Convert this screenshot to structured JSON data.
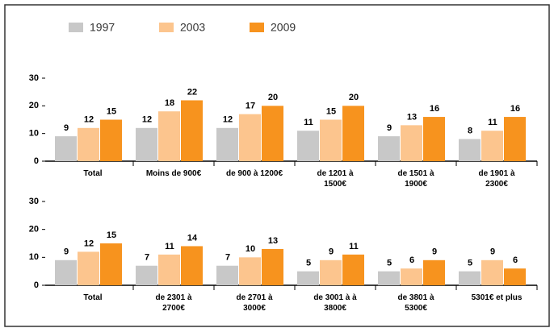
{
  "chart_data": [
    {
      "type": "bar",
      "categories": [
        "Total",
        "Moins de 900€",
        "de 900 à 1200€",
        "de 1201 à\n1500€",
        "de 1501 à\n1900€",
        "de 1901 à\n2300€"
      ],
      "series": [
        {
          "name": "1997",
          "color": "#c8c8c8",
          "values": [
            9,
            12,
            12,
            11,
            9,
            8
          ]
        },
        {
          "name": "2003",
          "color": "#fcc58e",
          "values": [
            12,
            18,
            17,
            15,
            13,
            11
          ]
        },
        {
          "name": "2009",
          "color": "#f7931e",
          "values": [
            15,
            22,
            20,
            20,
            16,
            16
          ]
        }
      ],
      "ylim": [
        0,
        30
      ],
      "yticks": [
        0,
        10,
        20,
        30
      ],
      "legend": "top"
    },
    {
      "type": "bar",
      "categories": [
        "Total",
        "de 2301 à\n2700€",
        "de 2701 à\n3000€",
        "de 3001 à à\n3800€",
        "de 3801 à\n5300€",
        "5301€ et plus"
      ],
      "series": [
        {
          "color": "#c8c8c8",
          "values": [
            9,
            7,
            7,
            5,
            5,
            5
          ]
        },
        {
          "color": "#fcc58e",
          "values": [
            12,
            11,
            10,
            9,
            6,
            9
          ]
        },
        {
          "color": "#f7931e",
          "values": [
            15,
            14,
            13,
            11,
            9,
            6
          ]
        }
      ],
      "ylim": [
        0,
        30
      ],
      "yticks": [
        0,
        10,
        20,
        30
      ]
    }
  ]
}
